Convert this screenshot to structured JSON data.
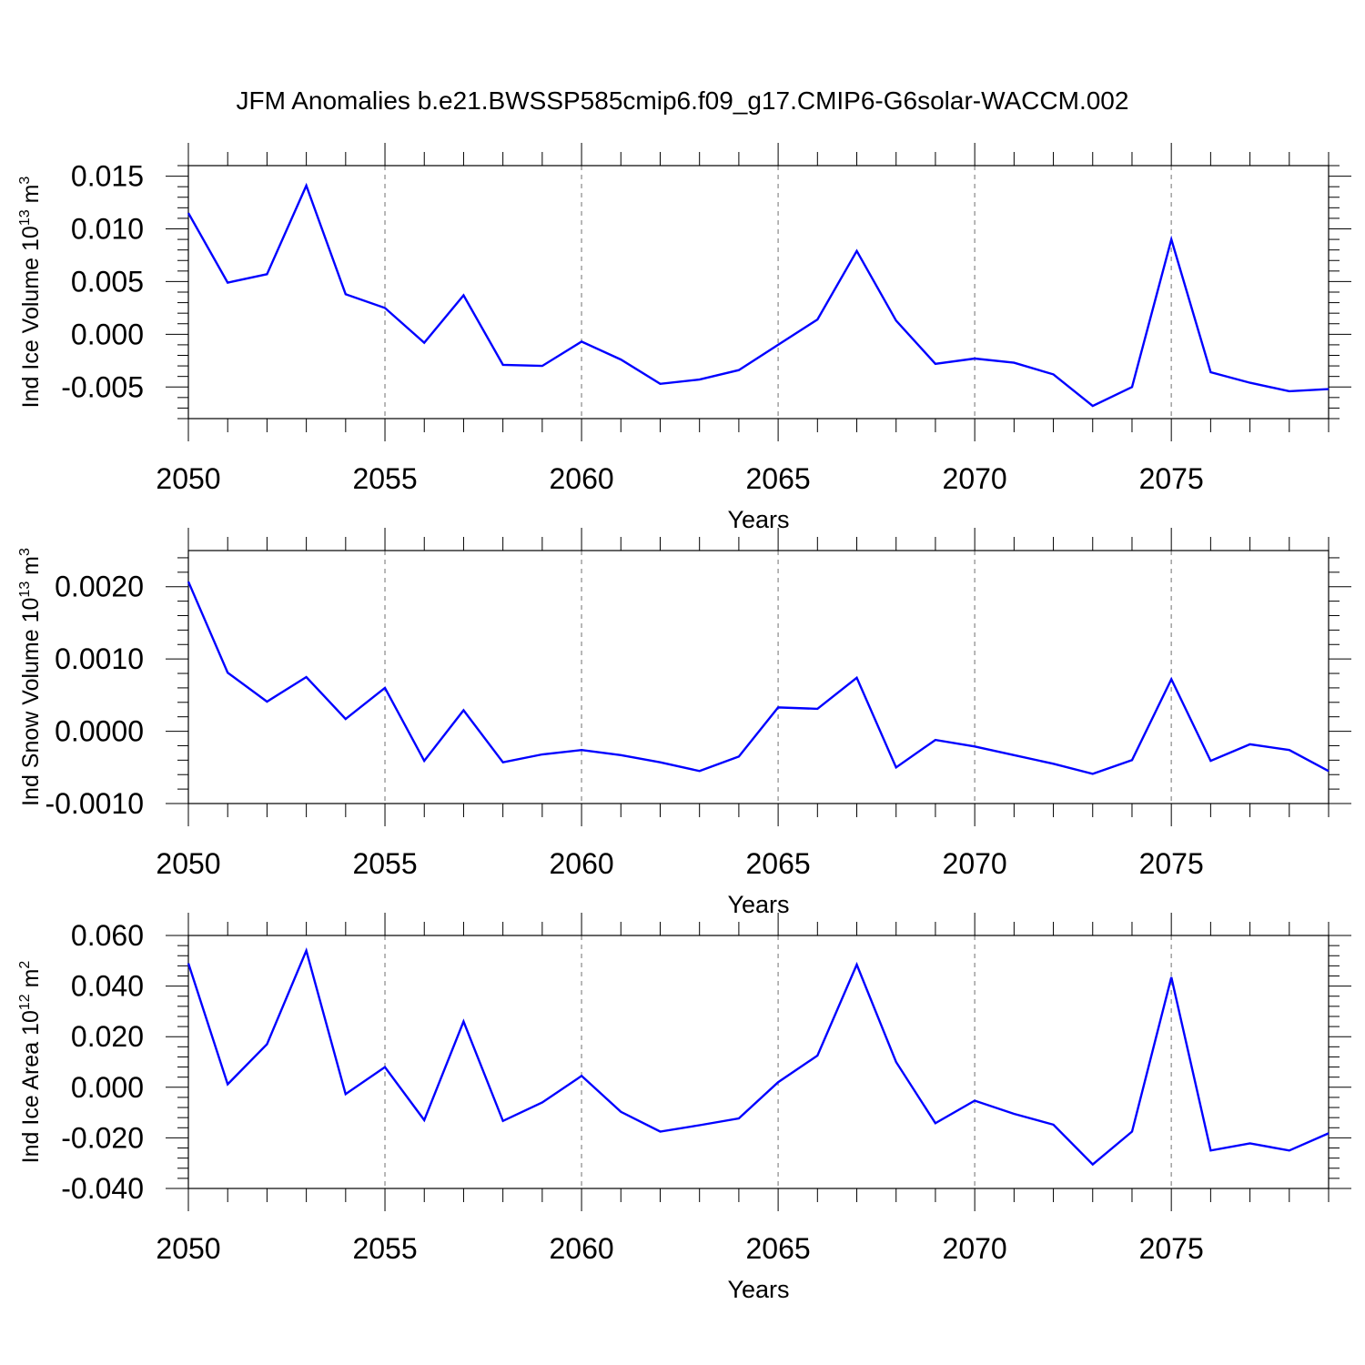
{
  "title": "JFM Anomalies b.e21.BWSSP585cmip6.f09_g17.CMIP6-G6solar-WACCM.002",
  "line_color": "#0000ff",
  "chart_data": [
    {
      "type": "line",
      "title": "",
      "xlabel": "Years",
      "ylabel": {
        "prefix": "Ind Ice Volume 10",
        "exponent": "13",
        "unit": " m",
        "unit_exponent": "3"
      },
      "xlim": [
        2050,
        2079
      ],
      "ylim": [
        -0.008,
        0.016
      ],
      "x_ticks": [
        "2050",
        "2055",
        "2060",
        "2065",
        "2070",
        "2075"
      ],
      "y_ticks": [
        "-0.005",
        "0.000",
        "0.005",
        "0.010",
        "0.015"
      ],
      "grid": "dashed vertical lines at labeled years",
      "x": [
        2050,
        2051,
        2052,
        2053,
        2054,
        2055,
        2056,
        2057,
        2058,
        2059,
        2060,
        2061,
        2062,
        2063,
        2064,
        2065,
        2066,
        2067,
        2068,
        2069,
        2070,
        2071,
        2072,
        2073,
        2074,
        2075,
        2076,
        2077,
        2078,
        2079
      ],
      "values": [
        0.0115,
        0.0049,
        0.0057,
        0.0141,
        0.0038,
        0.0025,
        -0.0008,
        0.0037,
        -0.0029,
        -0.003,
        -0.0007,
        -0.0024,
        -0.0047,
        -0.0043,
        -0.0034,
        -0.001,
        0.0014,
        0.0079,
        0.0013,
        -0.0028,
        -0.0023,
        -0.0027,
        -0.0038,
        -0.0068,
        -0.005,
        0.009,
        -0.0036,
        -0.0046,
        -0.0054,
        -0.0052
      ]
    },
    {
      "type": "line",
      "title": "",
      "xlabel": "Years",
      "ylabel": {
        "prefix": "Ind Snow Volume 10",
        "exponent": "13",
        "unit": " m",
        "unit_exponent": "3"
      },
      "xlim": [
        2050,
        2079
      ],
      "ylim": [
        -0.001,
        0.0025
      ],
      "x_ticks": [
        "2050",
        "2055",
        "2060",
        "2065",
        "2070",
        "2075"
      ],
      "y_ticks": [
        "-0.0010",
        "0.0000",
        "0.0010",
        "0.0020"
      ],
      "grid": "dashed vertical lines at labeled years",
      "x": [
        2050,
        2051,
        2052,
        2053,
        2054,
        2055,
        2056,
        2057,
        2058,
        2059,
        2060,
        2061,
        2062,
        2063,
        2064,
        2065,
        2066,
        2067,
        2068,
        2069,
        2070,
        2071,
        2072,
        2073,
        2074,
        2075,
        2076,
        2077,
        2078,
        2079
      ],
      "values": [
        0.00207,
        0.00081,
        0.00041,
        0.00075,
        0.00017,
        0.0006,
        -0.00041,
        0.00029,
        -0.00043,
        -0.00032,
        -0.00026,
        -0.00033,
        -0.00043,
        -0.00055,
        -0.00035,
        0.00033,
        0.00031,
        0.00074,
        -0.0005,
        -0.00012,
        -0.00021,
        -0.00033,
        -0.00045,
        -0.00059,
        -0.0004,
        0.00072,
        -0.00041,
        -0.00018,
        -0.00026,
        -0.00055
      ]
    },
    {
      "type": "line",
      "title": "",
      "xlabel": "Years",
      "ylabel": {
        "prefix": "Ind Ice Area 10",
        "exponent": "12",
        "unit": " m",
        "unit_exponent": "2"
      },
      "xlim": [
        2050,
        2079
      ],
      "ylim": [
        -0.04,
        0.06
      ],
      "x_ticks": [
        "2050",
        "2055",
        "2060",
        "2065",
        "2070",
        "2075"
      ],
      "y_ticks": [
        "-0.040",
        "-0.020",
        "0.000",
        "0.020",
        "0.040",
        "0.060"
      ],
      "grid": "dashed vertical lines at labeled years",
      "x": [
        2050,
        2051,
        2052,
        2053,
        2054,
        2055,
        2056,
        2057,
        2058,
        2059,
        2060,
        2061,
        2062,
        2063,
        2064,
        2065,
        2066,
        2067,
        2068,
        2069,
        2070,
        2071,
        2072,
        2073,
        2074,
        2075,
        2076,
        2077,
        2078,
        2079
      ],
      "values": [
        0.049,
        0.0012,
        0.017,
        0.054,
        -0.0027,
        0.008,
        -0.013,
        0.026,
        -0.0133,
        -0.006,
        0.0045,
        -0.0097,
        -0.0175,
        -0.015,
        -0.0123,
        0.002,
        0.0125,
        0.0485,
        0.01,
        -0.0142,
        -0.0053,
        -0.0105,
        -0.0148,
        -0.0305,
        -0.0175,
        0.0435,
        -0.025,
        -0.0222,
        -0.025,
        -0.0182
      ]
    }
  ]
}
